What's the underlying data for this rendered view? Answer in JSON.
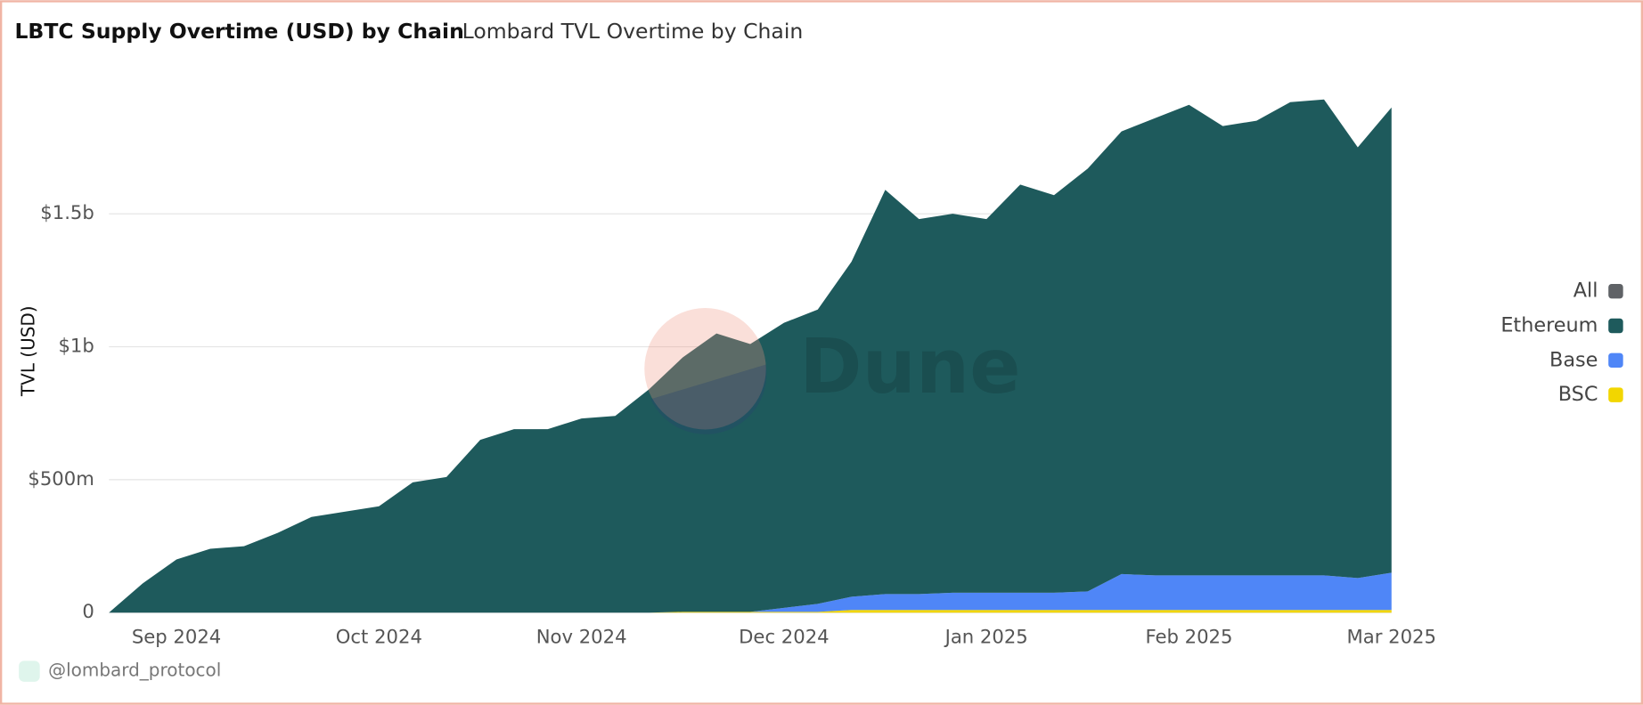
{
  "header": {
    "title": "LBTC Supply Overtime (USD) by Chain",
    "tab": "Lombard TVL Overtime by Chain"
  },
  "footer": {
    "author": "@lombard_protocol"
  },
  "watermark": "Dune",
  "chart_data": {
    "type": "stacked_area",
    "y_label": "TVL (USD)",
    "categories": [
      null,
      null,
      "Sep 2024",
      null,
      null,
      null,
      null,
      null,
      "Oct 2024",
      null,
      null,
      null,
      null,
      null,
      "Nov 2024",
      null,
      null,
      null,
      null,
      null,
      "Dec 2024",
      null,
      null,
      null,
      null,
      null,
      "Jan 2025",
      null,
      null,
      null,
      null,
      null,
      "Feb 2025",
      null,
      null,
      null,
      null,
      null,
      "Mar 2025"
    ],
    "series": [
      {
        "name": "All",
        "color": "#5f6266",
        "values": [
          null,
          null,
          null,
          null,
          null,
          null,
          null,
          null,
          null,
          null,
          null,
          null,
          null,
          null,
          null,
          null,
          null,
          null,
          null,
          null,
          null,
          null,
          null,
          null,
          null,
          null,
          null,
          null,
          null,
          null,
          null,
          null,
          null,
          null,
          null,
          null,
          null,
          null,
          null
        ]
      },
      {
        "name": "Ethereum",
        "color": "#1e5a5c",
        "values": [
          0,
          110000000,
          200000000,
          240000000,
          250000000,
          300000000,
          360000000,
          380000000,
          400000000,
          490000000,
          510000000,
          650000000,
          690000000,
          690000000,
          730000000,
          740000000,
          840000000,
          957000000,
          1047000000,
          1007000000,
          1072000000,
          1107000000,
          1260000000,
          1520000000,
          1410000000,
          1425000000,
          1405000000,
          1535000000,
          1495000000,
          1590000000,
          1665000000,
          1720000000,
          1770000000,
          1690000000,
          1710000000,
          1780000000,
          1790000000,
          1620000000,
          1750000000
        ]
      },
      {
        "name": "Base",
        "color": "#4f86f7",
        "values": [
          0,
          0,
          0,
          0,
          0,
          0,
          0,
          0,
          0,
          0,
          0,
          0,
          0,
          0,
          0,
          0,
          0,
          0,
          0,
          0,
          15000000,
          30000000,
          50000000,
          60000000,
          60000000,
          65000000,
          65000000,
          65000000,
          65000000,
          70000000,
          135000000,
          130000000,
          130000000,
          130000000,
          130000000,
          130000000,
          130000000,
          120000000,
          140000000
        ]
      },
      {
        "name": "BSC",
        "color": "#f2d600",
        "values": [
          0,
          0,
          0,
          0,
          0,
          0,
          0,
          0,
          0,
          0,
          0,
          0,
          0,
          0,
          0,
          0,
          0,
          3000000,
          3000000,
          3000000,
          3000000,
          3000000,
          10000000,
          10000000,
          10000000,
          10000000,
          10000000,
          10000000,
          10000000,
          10000000,
          10000000,
          10000000,
          10000000,
          10000000,
          10000000,
          10000000,
          10000000,
          10000000,
          10000000
        ]
      }
    ],
    "ylim": [
      0,
      2000000000
    ],
    "yticks": [
      0,
      {
        "value": 500000000,
        "label": "$500m"
      },
      {
        "value": 1000000000,
        "label": "$1b"
      },
      {
        "value": 1500000000,
        "label": "$1.5b"
      }
    ],
    "grid": true,
    "legend": "right"
  }
}
